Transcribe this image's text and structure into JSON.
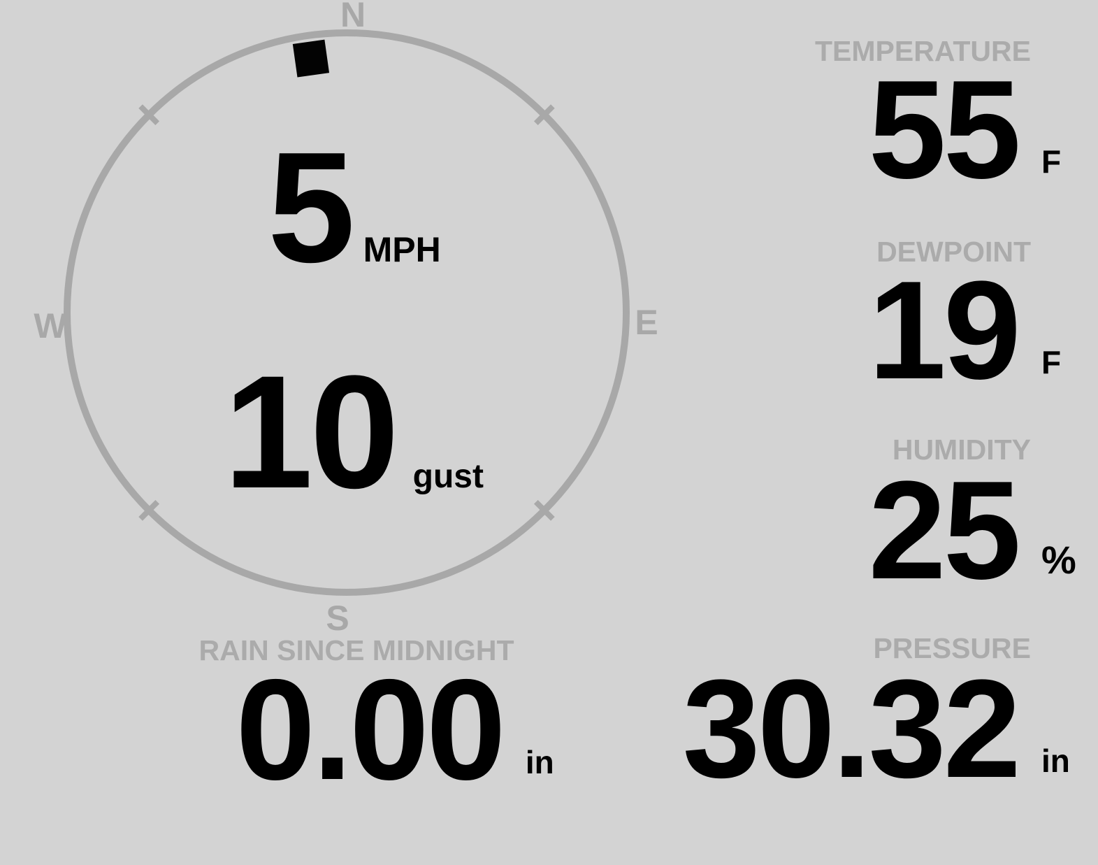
{
  "theme": {
    "background": "#d3d3d3",
    "label_color": "#ababab",
    "value_color": "#000000",
    "dial_color": "#a8a8a8"
  },
  "compass": {
    "cardinals": {
      "north": "N",
      "east": "E",
      "south": "S",
      "west": "W"
    },
    "wind_speed": "5",
    "wind_speed_unit": "MPH",
    "wind_gust": "10",
    "wind_gust_unit": "gust",
    "wind_direction_deg": 352
  },
  "metrics": {
    "temperature": {
      "label": "TEMPERATURE",
      "value": "55",
      "unit": "F"
    },
    "dewpoint": {
      "label": "DEWPOINT",
      "value": "19",
      "unit": "F"
    },
    "humidity": {
      "label": "HUMIDITY",
      "value": "25",
      "unit": "%"
    },
    "rain": {
      "label": "RAIN SINCE MIDNIGHT",
      "value": "0.00",
      "unit": "in"
    },
    "pressure": {
      "label": "PRESSURE",
      "value": "30.32",
      "unit": "in"
    }
  }
}
